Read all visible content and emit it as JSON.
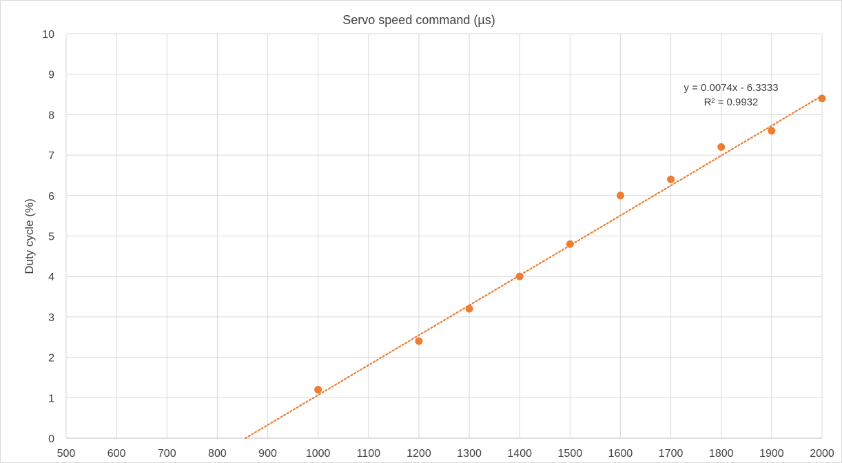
{
  "chart_data": {
    "type": "scatter",
    "title": "Servo speed command (µs)",
    "xlabel": "",
    "ylabel": "Duty cycle (%)",
    "xlim": [
      500,
      2000
    ],
    "ylim": [
      0,
      10
    ],
    "x_ticks": [
      500,
      600,
      700,
      800,
      900,
      1000,
      1100,
      1200,
      1300,
      1400,
      1500,
      1600,
      1700,
      1800,
      1900,
      2000
    ],
    "y_ticks": [
      0,
      1,
      2,
      3,
      4,
      5,
      6,
      7,
      8,
      9,
      10
    ],
    "grid": true,
    "legend": "none",
    "series": [
      {
        "x": [
          1000,
          1200,
          1300,
          1400,
          1500,
          1600,
          1700,
          1800,
          1900,
          2000
        ],
        "y": [
          1.2,
          2.4,
          3.2,
          4.0,
          4.8,
          6.0,
          6.4,
          7.2,
          7.6,
          8.4
        ],
        "color": "#ED7D31"
      }
    ],
    "trendline": {
      "type": "linear",
      "slope": 0.0074,
      "intercept": -6.3333,
      "color": "#ED7D31",
      "style": "dotted",
      "equation_label": "y = 0.0074x - 6.3333",
      "r2_label": "R² = 0.9932"
    }
  }
}
